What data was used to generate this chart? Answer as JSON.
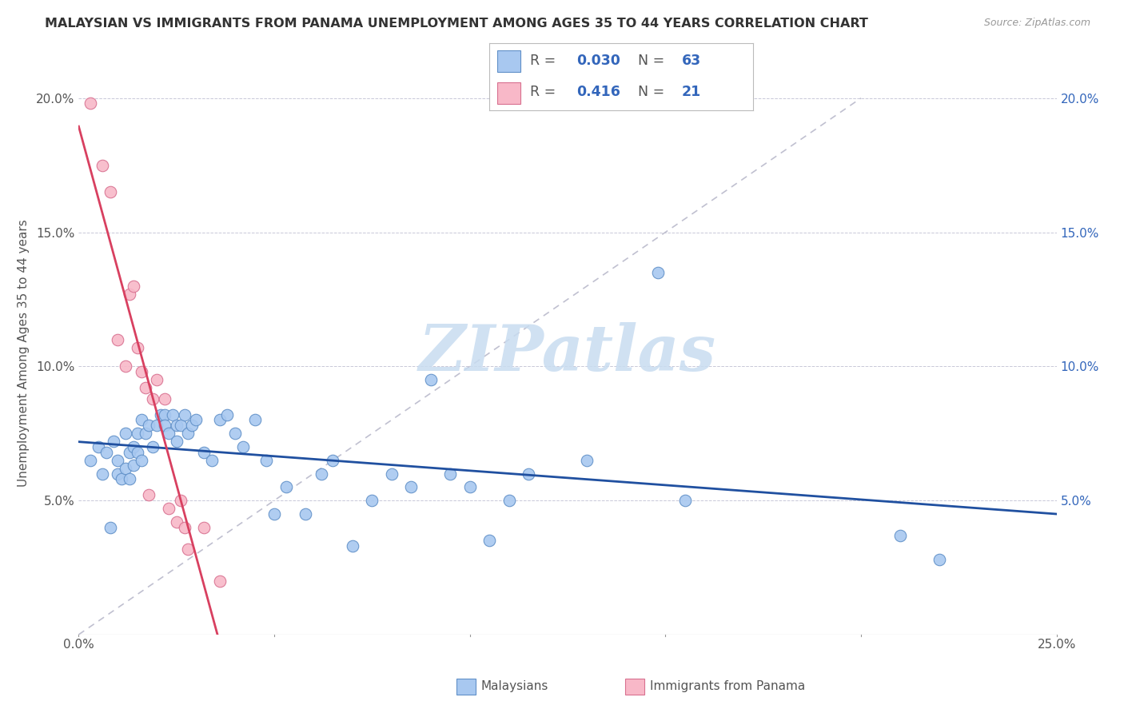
{
  "title": "MALAYSIAN VS IMMIGRANTS FROM PANAMA UNEMPLOYMENT AMONG AGES 35 TO 44 YEARS CORRELATION CHART",
  "source": "Source: ZipAtlas.com",
  "ylabel": "Unemployment Among Ages 35 to 44 years",
  "xlim": [
    0.0,
    0.25
  ],
  "ylim": [
    0.0,
    0.21
  ],
  "xticks": [
    0.0,
    0.05,
    0.1,
    0.15,
    0.2,
    0.25
  ],
  "yticks": [
    0.0,
    0.05,
    0.1,
    0.15,
    0.2
  ],
  "left_ytick_labels": [
    "",
    "5.0%",
    "10.0%",
    "15.0%",
    "20.0%"
  ],
  "right_ytick_labels": [
    "",
    "5.0%",
    "10.0%",
    "15.0%",
    "20.0%"
  ],
  "xtick_labels": [
    "0.0%",
    "",
    "",
    "",
    "",
    "25.0%"
  ],
  "legend_r_blue": "0.030",
  "legend_n_blue": "63",
  "legend_r_pink": "0.416",
  "legend_n_pink": "21",
  "blue_color": "#A8C8F0",
  "blue_edge_color": "#6090C8",
  "pink_color": "#F8B8C8",
  "pink_edge_color": "#D87090",
  "trend_blue_color": "#2050A0",
  "trend_pink_color": "#D84060",
  "diagonal_color": "#C0C0D0",
  "watermark_color": "#C8DCF0",
  "blue_points_x": [
    0.003,
    0.005,
    0.006,
    0.007,
    0.008,
    0.009,
    0.01,
    0.01,
    0.011,
    0.012,
    0.012,
    0.013,
    0.013,
    0.014,
    0.014,
    0.015,
    0.015,
    0.016,
    0.016,
    0.017,
    0.018,
    0.019,
    0.02,
    0.021,
    0.022,
    0.022,
    0.023,
    0.024,
    0.025,
    0.025,
    0.026,
    0.027,
    0.028,
    0.029,
    0.03,
    0.032,
    0.034,
    0.036,
    0.038,
    0.04,
    0.042,
    0.045,
    0.048,
    0.05,
    0.053,
    0.058,
    0.062,
    0.065,
    0.07,
    0.075,
    0.08,
    0.085,
    0.09,
    0.095,
    0.1,
    0.105,
    0.11,
    0.115,
    0.13,
    0.148,
    0.155,
    0.21,
    0.22
  ],
  "blue_points_y": [
    0.065,
    0.07,
    0.06,
    0.068,
    0.04,
    0.072,
    0.065,
    0.06,
    0.058,
    0.062,
    0.075,
    0.068,
    0.058,
    0.063,
    0.07,
    0.068,
    0.075,
    0.065,
    0.08,
    0.075,
    0.078,
    0.07,
    0.078,
    0.082,
    0.082,
    0.078,
    0.075,
    0.082,
    0.078,
    0.072,
    0.078,
    0.082,
    0.075,
    0.078,
    0.08,
    0.068,
    0.065,
    0.08,
    0.082,
    0.075,
    0.07,
    0.08,
    0.065,
    0.045,
    0.055,
    0.045,
    0.06,
    0.065,
    0.033,
    0.05,
    0.06,
    0.055,
    0.095,
    0.06,
    0.055,
    0.035,
    0.05,
    0.06,
    0.065,
    0.135,
    0.05,
    0.037,
    0.028
  ],
  "pink_points_x": [
    0.003,
    0.006,
    0.008,
    0.01,
    0.012,
    0.013,
    0.014,
    0.015,
    0.016,
    0.017,
    0.018,
    0.019,
    0.02,
    0.022,
    0.023,
    0.025,
    0.026,
    0.027,
    0.028,
    0.032,
    0.036
  ],
  "pink_points_y": [
    0.198,
    0.175,
    0.165,
    0.11,
    0.1,
    0.127,
    0.13,
    0.107,
    0.098,
    0.092,
    0.052,
    0.088,
    0.095,
    0.088,
    0.047,
    0.042,
    0.05,
    0.04,
    0.032,
    0.04,
    0.02
  ]
}
